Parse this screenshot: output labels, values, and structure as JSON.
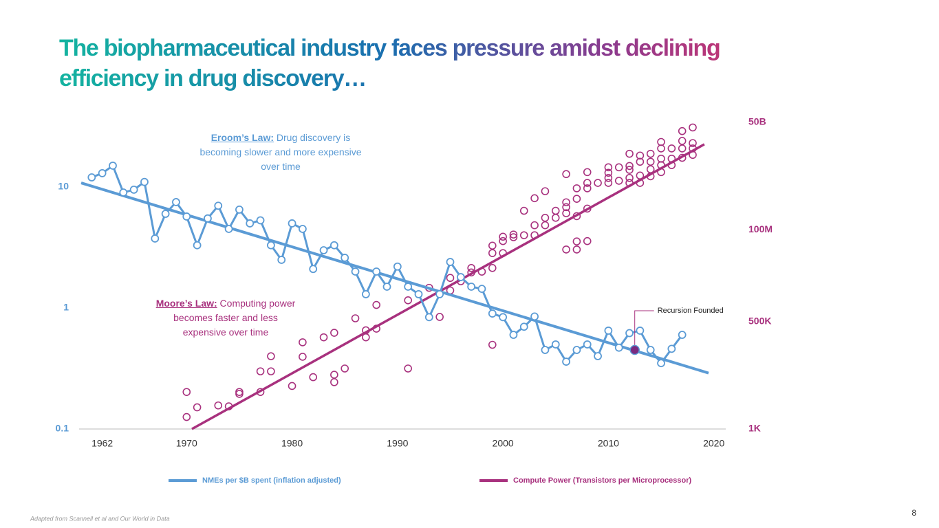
{
  "slide": {
    "title": [
      "The biopharmaceutical industry faces pressure amidst declining",
      "efficiency in drug discovery…"
    ],
    "source": "Adapted from Scannell et al and Our World in Data",
    "page_number": 8
  },
  "chart_data": {
    "type": "line",
    "xlim": [
      1960,
      2021
    ],
    "xticks": [
      1962,
      1970,
      1980,
      1990,
      2000,
      2010,
      2020
    ],
    "ylim": [
      0.1,
      40
    ],
    "yticks": [
      0.1,
      1,
      10
    ],
    "yscale": "log",
    "y2lim": [
      1000,
      80000000000
    ],
    "y2scale": "log",
    "y2ticks": [
      {
        "value": 1000,
        "label": "1K"
      },
      {
        "value": 500000,
        "label": "500K"
      },
      {
        "value": 100000000,
        "label": "100M"
      },
      {
        "value": 50000000000,
        "label": "50B"
      }
    ],
    "grid": false,
    "series": [
      {
        "name": "NMEs per $B spent (inflation adjusted)",
        "type": "line",
        "axis": "y",
        "color": "#5b9bd5",
        "x": [
          1961,
          1962,
          1963,
          1964,
          1965,
          1966,
          1967,
          1968,
          1969,
          1970,
          1971,
          1972,
          1973,
          1974,
          1975,
          1976,
          1977,
          1978,
          1979,
          1980,
          1981,
          1982,
          1983,
          1984,
          1985,
          1986,
          1987,
          1988,
          1989,
          1990,
          1991,
          1992,
          1993,
          1994,
          1995,
          1996,
          1997,
          1998,
          1999,
          2000,
          2001,
          2002,
          2003,
          2004,
          2005,
          2006,
          2007,
          2008,
          2009,
          2010,
          2011,
          2012,
          2013,
          2014,
          2015,
          2016,
          2017
        ],
        "values": [
          12,
          13,
          15,
          9,
          9.5,
          11,
          3.75,
          6,
          7.5,
          5.7,
          3.3,
          5.5,
          7,
          4.5,
          6.5,
          5,
          5.3,
          3.3,
          2.5,
          5,
          4.5,
          2.1,
          3,
          3.3,
          2.6,
          2,
          1.3,
          2,
          1.5,
          2.2,
          1.5,
          1.3,
          0.84,
          1.3,
          2.4,
          1.8,
          1.5,
          1.44,
          0.9,
          0.84,
          0.6,
          0.7,
          0.85,
          0.45,
          0.5,
          0.36,
          0.45,
          0.5,
          0.4,
          0.65,
          0.47,
          0.62,
          0.65,
          0.45,
          0.35,
          0.46,
          0.6
        ],
        "trend": {
          "x": [
            1960,
            2019.5
          ],
          "values": [
            10.8,
            0.29
          ]
        }
      },
      {
        "name": "Compute Power (Transistors per Microprocessor)",
        "type": "scatter",
        "axis": "y2",
        "color": "#a8317e",
        "x": [
          1970,
          1970,
          1971,
          1973,
          1974,
          1975,
          1975,
          1977,
          1977,
          1978,
          1978,
          1980,
          1981,
          1981,
          1982,
          1983,
          1984,
          1984,
          1984,
          1985,
          1986,
          1987,
          1987,
          1988,
          1988,
          1991,
          1991,
          1993,
          1994,
          1995,
          1995,
          1996,
          1997,
          1997,
          1998,
          1999,
          1999,
          1999,
          1999,
          2000,
          2000,
          2000,
          2001,
          2001,
          2002,
          2002,
          2003,
          2003,
          2003,
          2004,
          2004,
          2004,
          2005,
          2005,
          2006,
          2006,
          2006,
          2006,
          2006,
          2007,
          2007,
          2007,
          2007,
          2007,
          2008,
          2008,
          2008,
          2008,
          2008,
          2009,
          2010,
          2010,
          2010,
          2010,
          2011,
          2011,
          2012,
          2012,
          2012,
          2012,
          2012,
          2013,
          2013,
          2013,
          2013,
          2014,
          2014,
          2014,
          2014,
          2015,
          2015,
          2015,
          2015,
          2015,
          2016,
          2016,
          2016,
          2017,
          2017,
          2017,
          2017,
          2018,
          2018,
          2018,
          2018
        ],
        "values": [
          8500,
          2000,
          3500,
          3900,
          3700,
          7600,
          8500,
          8500,
          28000,
          28000,
          67000,
          12000,
          65000,
          150000,
          20000,
          200000,
          260000,
          23000,
          15000,
          33000,
          600000,
          300000,
          200000,
          330000,
          1300000,
          1700000,
          33000,
          3500000,
          650000,
          6200000,
          3000000,
          5100000,
          11000000,
          8500000,
          8900000,
          11000000,
          26000000,
          40000000,
          130000,
          26000000,
          52000000,
          67000000,
          65000000,
          76000000,
          73000000,
          300000000,
          73000000,
          130000000,
          620000000,
          130000000,
          200000000,
          930000000,
          200000000,
          300000000,
          260000000,
          370000000,
          490000000,
          2500000000,
          32000000,
          32000000,
          51000000,
          220000000,
          600000000,
          1100000000,
          52000000,
          340000000,
          1100000000,
          1500000000,
          2800000000,
          1500000000,
          1500000000,
          2000000000,
          2700000000,
          3700000000,
          1700000000,
          3700000000,
          1500000000,
          2000000000,
          3200000000,
          4000000000,
          8100000000,
          1500000000,
          2300000000,
          5100000000,
          7300000000,
          2200000000,
          3300000000,
          5100000000,
          8100000000,
          2800000000,
          4200000000,
          6100000000,
          11000000000,
          16000000000,
          4200000000,
          6100000000,
          11000000000,
          6400000000,
          11000000000,
          17000000000,
          30000000000,
          7600000000,
          11000000000,
          15000000000,
          37000000000
        ],
        "trend": {
          "x": [
            1970.5,
            2019.1
          ],
          "values": [
            1000,
            14000000000
          ]
        }
      }
    ],
    "annotations": [
      {
        "label": "Eroom’s Law:",
        "text": "Drug discovery is becoming slower and more expensive over time",
        "color": "#5b9bd5"
      },
      {
        "label": "Moore’s Law:",
        "text": "Computing power becomes faster and less expensive over time",
        "color": "#a8317e"
      }
    ],
    "event": {
      "text": "Recursion Founded",
      "x": 2012.5,
      "value": 0.45
    }
  }
}
